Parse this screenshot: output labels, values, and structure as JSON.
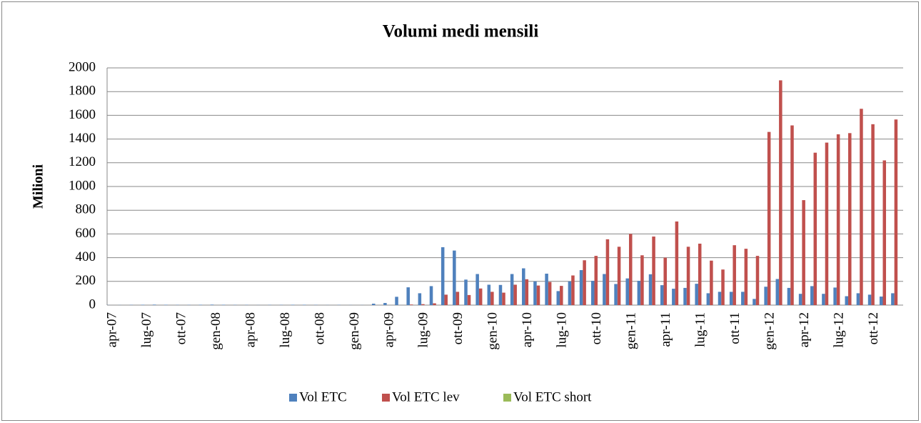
{
  "chart_data": {
    "type": "bar",
    "title": "Volumi medi mensili",
    "y_label": "Milioni",
    "categories": [
      "apr-07",
      null,
      null,
      "lug-07",
      null,
      null,
      "ott-07",
      null,
      null,
      "gen-08",
      null,
      null,
      "apr-08",
      null,
      null,
      "lug-08",
      null,
      null,
      "ott-08",
      null,
      null,
      "gen-09",
      null,
      null,
      "apr-09",
      null,
      null,
      "lug-09",
      null,
      null,
      "ott-09",
      null,
      null,
      "gen-10",
      null,
      null,
      "apr-10",
      null,
      null,
      "lug-10",
      null,
      null,
      "ott-10",
      null,
      null,
      "gen-11",
      null,
      null,
      "apr-11",
      null,
      null,
      "lug-11",
      null,
      null,
      "ott-11",
      null,
      null,
      "gen-12",
      null,
      null,
      "apr-12",
      null,
      null,
      "lug-12",
      null,
      null,
      "ott-12",
      null,
      null
    ],
    "series": [
      {
        "name": "Vol ETC",
        "color": "#4f81bd",
        "values": [
          1,
          1,
          2,
          3,
          4,
          3,
          2,
          2,
          3,
          4,
          3,
          2,
          2,
          1,
          2,
          2,
          3,
          3,
          2,
          1,
          2,
          1,
          1,
          12,
          18,
          70,
          150,
          100,
          160,
          488,
          460,
          215,
          262,
          172,
          170,
          262,
          310,
          200,
          265,
          118,
          200,
          295,
          205,
          262,
          178,
          225,
          205,
          260,
          168,
          138,
          145,
          180,
          100,
          112,
          112,
          112,
          52,
          155,
          220,
          145,
          95,
          160,
          95,
          148,
          75,
          100,
          88,
          72,
          100
        ]
      },
      {
        "name": "Vol ETC lev",
        "color": "#c0504d",
        "values": [
          0,
          0,
          0,
          0,
          0,
          0,
          0,
          0,
          0,
          0,
          0,
          0,
          0,
          0,
          0,
          0,
          0,
          0,
          0,
          0,
          0,
          0,
          0,
          0,
          0,
          0,
          5,
          8,
          15,
          88,
          112,
          85,
          140,
          112,
          105,
          172,
          218,
          165,
          195,
          162,
          250,
          378,
          415,
          555,
          492,
          600,
          420,
          578,
          400,
          705,
          492,
          518,
          375,
          300,
          505,
          475,
          415,
          1460,
          1895,
          1515,
          885,
          1285,
          1370,
          1440,
          1450,
          1655,
          1525,
          1220,
          1565
        ]
      },
      {
        "name": "Vol ETC short",
        "color": "#9bbb59",
        "values": [
          0,
          0,
          0,
          0,
          0,
          0,
          0,
          0,
          0,
          0,
          0,
          0,
          0,
          0,
          0,
          0,
          0,
          0,
          0,
          0,
          0,
          0,
          0,
          0,
          0,
          0,
          0,
          0,
          0,
          0,
          0,
          0,
          0,
          0,
          0,
          0,
          0,
          0,
          0,
          0,
          0,
          0,
          0,
          0,
          0,
          0,
          0,
          0,
          0,
          0,
          0,
          0,
          0,
          0,
          0,
          0,
          0,
          0,
          0,
          0,
          0,
          0,
          0,
          0,
          0,
          0,
          0,
          0,
          0
        ]
      }
    ],
    "ylim": [
      0,
      2000
    ],
    "yticks": [
      0,
      200,
      400,
      600,
      800,
      1000,
      1200,
      1400,
      1600,
      1800,
      2000
    ],
    "grid": true,
    "legend": "bottom"
  }
}
